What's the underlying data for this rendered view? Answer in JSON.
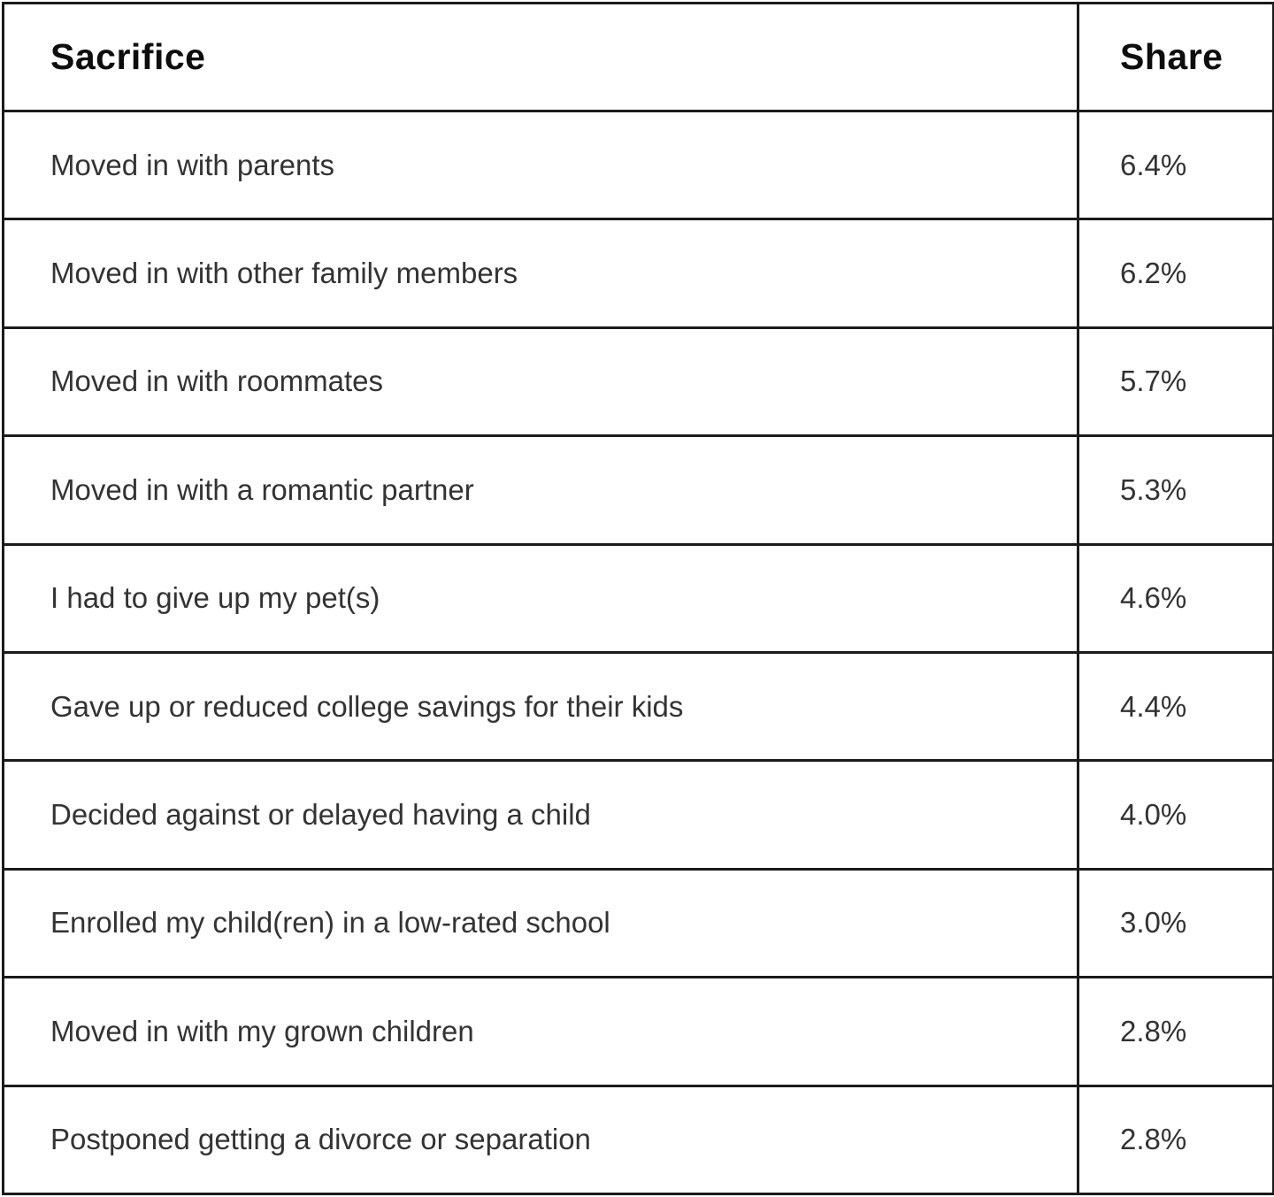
{
  "table": {
    "columns": [
      "Sacrifice",
      "Share"
    ],
    "rows": [
      {
        "sacrifice": "Moved in with parents",
        "share": "6.4%"
      },
      {
        "sacrifice": "Moved in with other family members",
        "share": "6.2%"
      },
      {
        "sacrifice": "Moved in with roommates",
        "share": "5.7%"
      },
      {
        "sacrifice": "Moved in with a romantic partner",
        "share": "5.3%"
      },
      {
        "sacrifice": "I had to give up my pet(s)",
        "share": "4.6%"
      },
      {
        "sacrifice": "Gave up or reduced college savings for their kids",
        "share": "4.4%"
      },
      {
        "sacrifice": "Decided against or delayed having a child",
        "share": "4.0%"
      },
      {
        "sacrifice": "Enrolled my child(ren) in a low-rated school",
        "share": "3.0%"
      },
      {
        "sacrifice": "Moved in with my grown children",
        "share": "2.8%"
      },
      {
        "sacrifice": "Postponed getting a divorce or separation",
        "share": "2.8%"
      }
    ]
  },
  "chart_data": {
    "type": "table",
    "title": "",
    "columns": [
      "Sacrifice",
      "Share"
    ],
    "rows": [
      [
        "Moved in with parents",
        "6.4%"
      ],
      [
        "Moved in with other family members",
        "6.2%"
      ],
      [
        "Moved in with roommates",
        "5.7%"
      ],
      [
        "Moved in with a romantic partner",
        "5.3%"
      ],
      [
        "I had to give up my pet(s)",
        "4.6%"
      ],
      [
        "Gave up or reduced college savings for their kids",
        "4.4%"
      ],
      [
        "Decided against or delayed having a child",
        "4.0%"
      ],
      [
        "Enrolled my child(ren) in a low-rated school",
        "3.0%"
      ],
      [
        "Moved in with my grown children",
        "2.8%"
      ],
      [
        "Postponed getting a divorce or separation",
        "2.8%"
      ]
    ],
    "share_values_pct": [
      6.4,
      6.2,
      5.7,
      5.3,
      4.6,
      4.4,
      4.0,
      3.0,
      2.8,
      2.8
    ],
    "colors": {
      "background": "#ffffff",
      "border": "#1b1b1b",
      "header_text": "#0d0d0d",
      "body_text": "#333333"
    }
  }
}
